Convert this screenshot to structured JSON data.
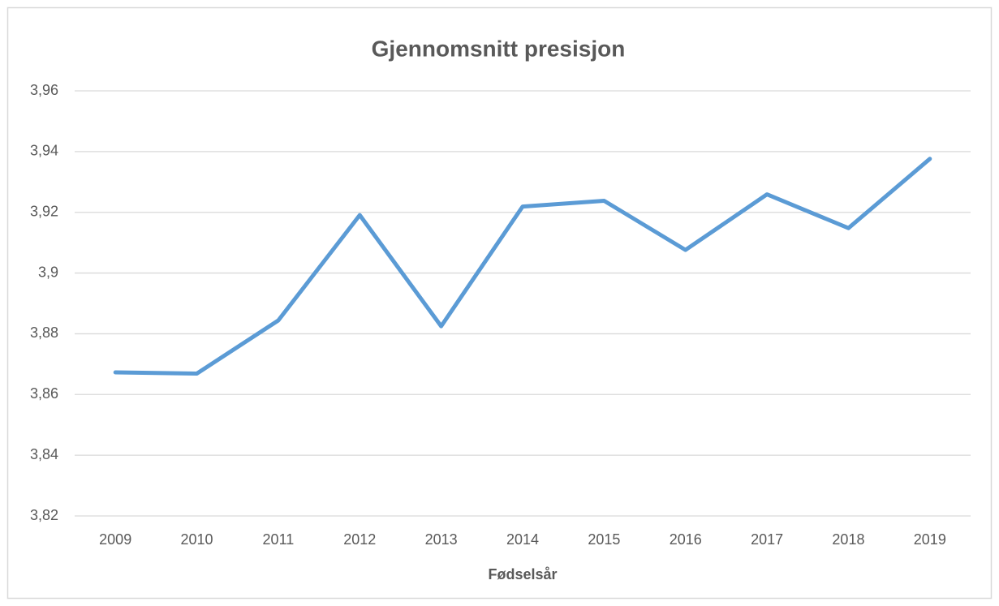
{
  "chart_data": {
    "type": "line",
    "title": "Gjennomsnitt presisjon",
    "x_label": "Fødselsår",
    "categories": [
      "2009",
      "2010",
      "2011",
      "2012",
      "2013",
      "2014",
      "2015",
      "2016",
      "2017",
      "2018",
      "2019"
    ],
    "series": [
      {
        "name": "Gjennomsnitt presisjon",
        "color": "#5b9bd5",
        "values": [
          3.8673,
          3.8669,
          3.8844,
          3.9191,
          3.8825,
          3.9219,
          3.9238,
          3.9076,
          3.9259,
          3.9148,
          3.9376
        ]
      }
    ],
    "ylim": [
      3.82,
      3.96
    ],
    "yticks": [
      {
        "value": 3.82,
        "label": "3,82"
      },
      {
        "value": 3.84,
        "label": "3,84"
      },
      {
        "value": 3.86,
        "label": "3,86"
      },
      {
        "value": 3.88,
        "label": "3,88"
      },
      {
        "value": 3.9,
        "label": "3,9"
      },
      {
        "value": 3.92,
        "label": "3,92"
      },
      {
        "value": 3.94,
        "label": "3,94"
      },
      {
        "value": 3.96,
        "label": "3,96"
      }
    ],
    "grid": true
  }
}
